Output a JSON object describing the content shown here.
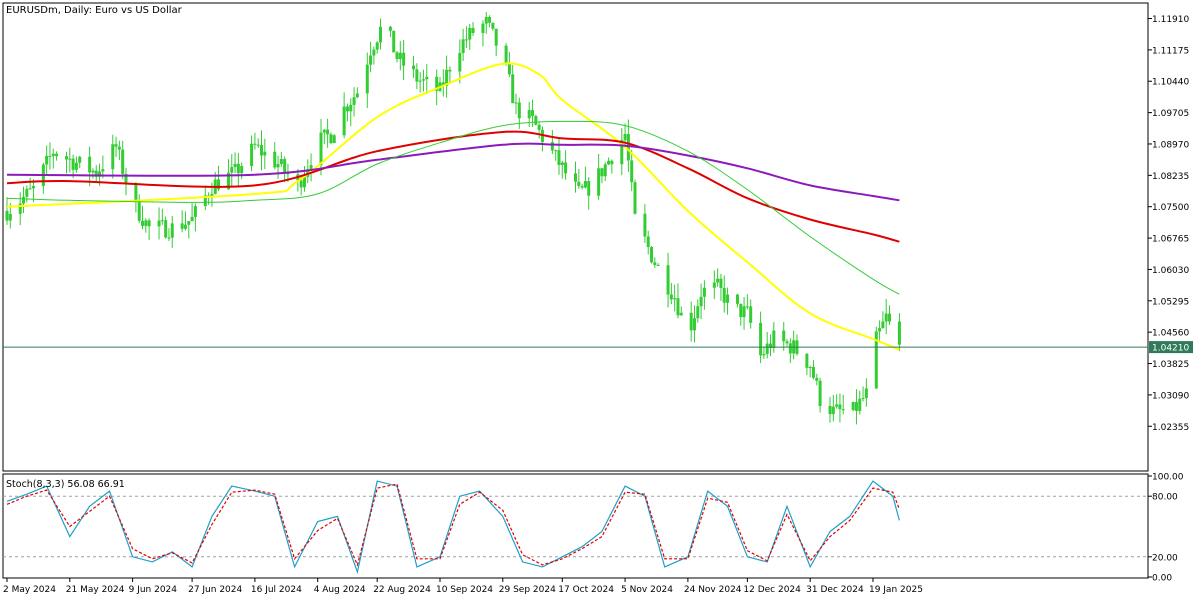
{
  "header": {
    "title": "EURUSDm, Daily:  Euro vs US Dollar"
  },
  "colors": {
    "background": "#ffffff",
    "axis": "#000000",
    "candle": "#33cc33",
    "ma_fast": "#ffff00",
    "ma_red": "#e00000",
    "ma_purple": "#8b1ab8",
    "ma_green_thin": "#33cc33",
    "ma_gray": "#a0a0a0",
    "price_line": "#2f7a5a",
    "stoch_main": "#1e9fc8",
    "stoch_signal": "#e00000",
    "level_line": "#a0a0a0",
    "current_label_bg": "#2f7a5a"
  },
  "indicator_panel": {
    "label": "Stoch(8,3,3) 56.08 66.91"
  },
  "chart_data": [
    {
      "type": "line",
      "title": "EURUSDm, Daily:  Euro vs US Dollar",
      "chart_style": "candlestick",
      "xlabel": "",
      "ylabel": "",
      "ylim": [
        1.0133,
        1.1225
      ],
      "y_ticks": [
        "1.11910",
        "1.11175",
        "1.10440",
        "1.09705",
        "1.08970",
        "1.08235",
        "1.07500",
        "1.06765",
        "1.06030",
        "1.05295",
        "1.04560",
        "1.03825",
        "1.03090",
        "1.02355"
      ],
      "x_ticks": [
        "2 May 2024",
        "21 May 2024",
        "9 Jun 2024",
        "27 Jun 2024",
        "16 Jul 2024",
        "4 Aug 2024",
        "22 Aug 2024",
        "10 Sep 2024",
        "29 Sep 2024",
        "17 Oct 2024",
        "5 Nov 2024",
        "24 Nov 2024",
        "12 Dec 2024",
        "31 Dec 2024",
        "19 Jan 2025"
      ],
      "current_price": "1.04210",
      "close_path": {
        "x": [
          "2 May 2024",
          "10 May 2024",
          "16 May 2024",
          "21 May 2024",
          "29 May 2024",
          "4 Jun 2024",
          "9 Jun 2024",
          "14 Jun 2024",
          "21 Jun 2024",
          "27 Jun 2024",
          "3 Jul 2024",
          "10 Jul 2024",
          "16 Jul 2024",
          "23 Jul 2024",
          "29 Jul 2024",
          "4 Aug 2024",
          "8 Aug 2024",
          "12 Aug 2024",
          "16 Aug 2024",
          "20 Aug 2024",
          "24 Aug 2024",
          "28 Aug 2024",
          "3 Sep 2024",
          "10 Sep 2024",
          "15 Sep 2024",
          "20 Sep 2024",
          "24 Sep 2024",
          "29 Sep 2024",
          "3 Oct 2024",
          "8 Oct 2024",
          "12 Oct 2024",
          "17 Oct 2024",
          "22 Oct 2024",
          "26 Oct 2024",
          "1 Nov 2024",
          "5 Nov 2024",
          "8 Nov 2024",
          "14 Nov 2024",
          "20 Nov 2024",
          "24 Nov 2024",
          "28 Nov 2024",
          "3 Dec 2024",
          "8 Dec 2024",
          "12 Dec 2024",
          "16 Dec 2024",
          "20 Dec 2024",
          "26 Dec 2024",
          "31 Dec 2024",
          "3 Jan 2025",
          "7 Jan 2025",
          "13 Jan 2025",
          "17 Jan 2025",
          "19 Jan 2025",
          "23 Jan 2025",
          "27 Jan 2025"
        ],
        "y": [
          1.074,
          1.079,
          1.088,
          1.086,
          1.083,
          1.089,
          1.076,
          1.07,
          1.07,
          1.072,
          1.08,
          1.083,
          1.089,
          1.085,
          1.08,
          1.09,
          1.092,
          1.098,
          1.102,
          1.112,
          1.118,
          1.11,
          1.105,
          1.102,
          1.112,
          1.116,
          1.118,
          1.11,
          1.098,
          1.095,
          1.09,
          1.084,
          1.078,
          1.08,
          1.087,
          1.092,
          1.072,
          1.062,
          1.054,
          1.045,
          1.055,
          1.056,
          1.051,
          1.05,
          1.04,
          1.044,
          1.042,
          1.038,
          1.03,
          1.027,
          1.027,
          1.031,
          1.042,
          1.049,
          1.0421
        ]
      },
      "series": [
        {
          "name": "",
          "type": "moving-average",
          "color": "#ffff00",
          "x": [
            "2 May 2024",
            "16 Jul 2024",
            "29 Jul 2024",
            "22 Aug 2024",
            "10 Sep 2024",
            "29 Sep 2024",
            "10 Oct 2024",
            "17 Oct 2024",
            "5 Nov 2024",
            "24 Nov 2024",
            "12 Dec 2024",
            "31 Dec 2024",
            "19 Jan 2025",
            "27 Jan 2025"
          ],
          "y": [
            1.075,
            1.078,
            1.081,
            1.096,
            1.103,
            1.1085,
            1.106,
            1.1,
            1.089,
            1.074,
            1.062,
            1.05,
            1.044,
            1.0415
          ]
        },
        {
          "name": "",
          "type": "moving-average",
          "color": "#e00000",
          "x": [
            "2 May 2024",
            "21 May 2024",
            "16 Jul 2024",
            "22 Aug 2024",
            "29 Sep 2024",
            "17 Oct 2024",
            "5 Nov 2024",
            "24 Nov 2024",
            "12 Dec 2024",
            "31 Dec 2024",
            "19 Jan 2025",
            "27 Jan 2025"
          ],
          "y": [
            1.0805,
            1.081,
            1.08,
            1.088,
            1.0925,
            1.091,
            1.09,
            1.084,
            1.077,
            1.072,
            1.0685,
            1.0668
          ]
        },
        {
          "name": "",
          "type": "moving-average",
          "color": "#8b1ab8",
          "x": [
            "2 May 2024",
            "16 Jul 2024",
            "22 Aug 2024",
            "29 Sep 2024",
            "17 Oct 2024",
            "5 Nov 2024",
            "24 Nov 2024",
            "12 Dec 2024",
            "31 Dec 2024",
            "19 Jan 2025",
            "27 Jan 2025"
          ],
          "y": [
            1.0825,
            1.0825,
            1.086,
            1.0895,
            1.0895,
            1.0893,
            1.087,
            1.084,
            1.08,
            1.0775,
            1.0765
          ]
        },
        {
          "name": "",
          "type": "moving-average",
          "color": "#33cc33",
          "x": [
            "2 May 2024",
            "21 May 2024",
            "27 Jun 2024",
            "16 Jul 2024",
            "4 Aug 2024",
            "22 Aug 2024",
            "10 Sep 2024",
            "29 Sep 2024",
            "17 Oct 2024",
            "5 Nov 2024",
            "24 Nov 2024",
            "12 Dec 2024",
            "31 Dec 2024",
            "19 Jan 2025",
            "27 Jan 2025"
          ],
          "y": [
            1.077,
            1.0765,
            1.076,
            1.0765,
            1.078,
            1.085,
            1.09,
            1.094,
            1.095,
            1.094,
            1.088,
            1.079,
            1.068,
            1.058,
            1.0545
          ]
        }
      ]
    },
    {
      "type": "line",
      "title": "Stoch(8,3,3) 56.08 66.91",
      "ylim": [
        0,
        100
      ],
      "y_ticks": [
        "100.00",
        "80.00",
        "20.00",
        "0.00"
      ],
      "levels": [
        80,
        20
      ],
      "x": [
        "2 May 2024",
        "8 May 2024",
        "14 May 2024",
        "21 May 2024",
        "27 May 2024",
        "2 Jun 2024",
        "9 Jun 2024",
        "15 Jun 2024",
        "21 Jun 2024",
        "27 Jun 2024",
        "3 Jul 2024",
        "9 Jul 2024",
        "16 Jul 2024",
        "22 Jul 2024",
        "28 Jul 2024",
        "4 Aug 2024",
        "10 Aug 2024",
        "16 Aug 2024",
        "22 Aug 2024",
        "28 Aug 2024",
        "3 Sep 2024",
        "10 Sep 2024",
        "16 Sep 2024",
        "22 Sep 2024",
        "29 Sep 2024",
        "5 Oct 2024",
        "11 Oct 2024",
        "17 Oct 2024",
        "23 Oct 2024",
        "29 Oct 2024",
        "5 Nov 2024",
        "11 Nov 2024",
        "17 Nov 2024",
        "24 Nov 2024",
        "30 Nov 2024",
        "6 Dec 2024",
        "12 Dec 2024",
        "18 Dec 2024",
        "24 Dec 2024",
        "31 Dec 2024",
        "6 Jan 2025",
        "12 Jan 2025",
        "19 Jan 2025",
        "25 Jan 2025",
        "27 Jan 2025"
      ],
      "series": [
        {
          "name": "",
          "color": "#1e9fc8",
          "values": [
            75,
            82,
            90,
            40,
            70,
            85,
            20,
            15,
            25,
            10,
            60,
            90,
            85,
            80,
            10,
            55,
            60,
            5,
            95,
            90,
            10,
            20,
            80,
            85,
            60,
            15,
            10,
            20,
            30,
            45,
            90,
            80,
            10,
            20,
            85,
            70,
            20,
            15,
            70,
            10,
            45,
            60,
            95,
            80,
            56
          ]
        },
        {
          "name": "",
          "color": "#e00000",
          "values": [
            72,
            80,
            86,
            50,
            65,
            80,
            28,
            18,
            24,
            14,
            52,
            84,
            86,
            82,
            18,
            46,
            58,
            12,
            88,
            92,
            18,
            18,
            72,
            84,
            66,
            22,
            12,
            18,
            28,
            40,
            84,
            82,
            18,
            18,
            78,
            74,
            26,
            16,
            62,
            16,
            40,
            56,
            88,
            84,
            67
          ]
        }
      ]
    }
  ]
}
